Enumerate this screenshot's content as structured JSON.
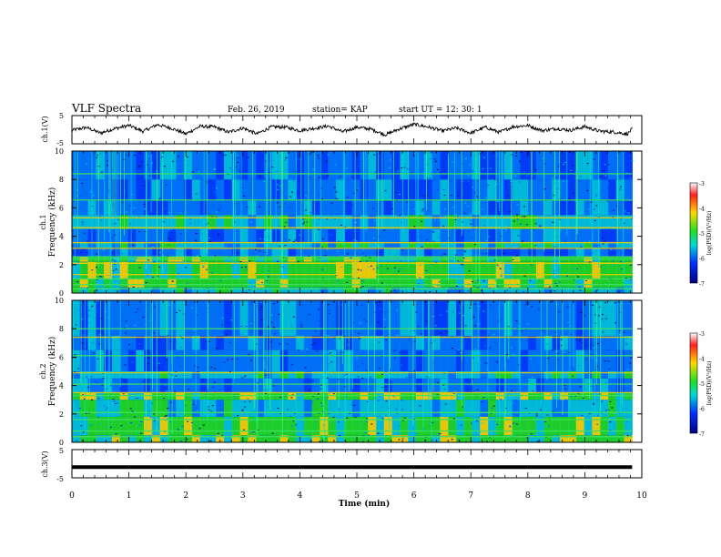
{
  "header": {
    "title": "VLF Spectra",
    "date": "Feb. 26, 2019",
    "station": "station= KAP",
    "start": "start  UT  =   12: 30: 1"
  },
  "colorbar": {
    "label": "log(PSD)(V²/Hz)",
    "ticks": [
      "-3",
      "-4",
      "-5",
      "-6",
      "-7"
    ],
    "colors": [
      "#ffffff",
      "#ff2020",
      "#ffd800",
      "#20e020",
      "#00d8d8",
      "#0030ff",
      "#000080"
    ]
  },
  "chart_data": [
    {
      "type": "line",
      "name": "ch1-waveform",
      "ylabel": "ch.1(V)",
      "ylim": [
        -5,
        5
      ],
      "yticks": [
        "5",
        "-5"
      ],
      "xlim": [
        0,
        10
      ],
      "x_end": 9.83,
      "description_points": [
        [
          0.0,
          -0.2
        ],
        [
          0.25,
          0.8
        ],
        [
          0.5,
          -1.2
        ],
        [
          0.75,
          0.4
        ],
        [
          1.0,
          1.5
        ],
        [
          1.25,
          -0.6
        ],
        [
          1.5,
          1.8
        ],
        [
          1.75,
          0.5
        ],
        [
          2.0,
          -1.5
        ],
        [
          2.25,
          1.2
        ],
        [
          2.5,
          1.0
        ],
        [
          2.75,
          -0.9
        ],
        [
          3.0,
          0.6
        ],
        [
          3.25,
          -1.5
        ],
        [
          3.5,
          1.0
        ],
        [
          3.75,
          0.9
        ],
        [
          4.0,
          -0.3
        ],
        [
          4.25,
          0.5
        ],
        [
          4.5,
          1.3
        ],
        [
          4.75,
          -0.8
        ],
        [
          5.0,
          0.9
        ],
        [
          5.25,
          0.2
        ],
        [
          5.5,
          -1.8
        ],
        [
          5.75,
          0.3
        ],
        [
          6.0,
          1.9
        ],
        [
          6.25,
          1.0
        ],
        [
          6.5,
          -0.4
        ],
        [
          6.75,
          0.6
        ],
        [
          7.0,
          -1.2
        ],
        [
          7.25,
          0.9
        ],
        [
          7.5,
          -0.9
        ],
        [
          7.75,
          1.1
        ],
        [
          8.0,
          1.5
        ],
        [
          8.25,
          -0.3
        ],
        [
          8.5,
          0.4
        ],
        [
          8.75,
          -0.2
        ],
        [
          9.0,
          1.1
        ],
        [
          9.25,
          -0.5
        ],
        [
          9.5,
          -0.8
        ],
        [
          9.75,
          -1.5
        ],
        [
          9.83,
          0.3
        ]
      ]
    },
    {
      "type": "heatmap",
      "name": "ch1-spectrogram",
      "ylabel": "ch.1",
      "ylabel2": "Frequency (kHz)",
      "ylim": [
        0,
        10
      ],
      "yticks": [
        "0",
        "2",
        "4",
        "6",
        "8",
        "10"
      ],
      "xlim": [
        0,
        10
      ],
      "x_end": 9.83,
      "bands": [
        {
          "f0": 0.0,
          "f1": 0.4,
          "level": 4
        },
        {
          "f0": 0.4,
          "f1": 1.0,
          "level": 3
        },
        {
          "f0": 1.0,
          "f1": 2.2,
          "level": 3
        },
        {
          "f0": 2.2,
          "f1": 2.6,
          "level": 3
        },
        {
          "f0": 2.6,
          "f1": 3.2,
          "level": 5
        },
        {
          "f0": 3.2,
          "f1": 3.6,
          "level": 4
        },
        {
          "f0": 3.6,
          "f1": 4.5,
          "level": 5
        },
        {
          "f0": 4.5,
          "f1": 5.5,
          "level": 4
        },
        {
          "f0": 5.5,
          "f1": 6.5,
          "level": 5
        },
        {
          "f0": 6.5,
          "f1": 8.0,
          "level": 5
        },
        {
          "f0": 8.0,
          "f1": 10.0,
          "level": 5
        }
      ],
      "bright_lines_khz": [
        0.3,
        0.6,
        1.0,
        1.3,
        2.1,
        2.4,
        2.55,
        3.15,
        3.55,
        4.6,
        5.3,
        6.55,
        8.4
      ]
    },
    {
      "type": "heatmap",
      "name": "ch2-spectrogram",
      "ylabel": "ch.2",
      "ylabel2": "Frequency (kHz)",
      "ylim": [
        0,
        10
      ],
      "yticks": [
        "0",
        "2",
        "4",
        "6",
        "8",
        "10"
      ],
      "xlim": [
        0,
        10
      ],
      "x_end": 9.83,
      "bands": [
        {
          "f0": 0.0,
          "f1": 0.5,
          "level": 3
        },
        {
          "f0": 0.5,
          "f1": 1.8,
          "level": 3
        },
        {
          "f0": 1.8,
          "f1": 3.0,
          "level": 4
        },
        {
          "f0": 3.0,
          "f1": 3.5,
          "level": 3
        },
        {
          "f0": 3.5,
          "f1": 4.5,
          "level": 5
        },
        {
          "f0": 4.5,
          "f1": 5.0,
          "level": 4
        },
        {
          "f0": 5.0,
          "f1": 6.5,
          "level": 5
        },
        {
          "f0": 6.5,
          "f1": 7.5,
          "level": 5
        },
        {
          "f0": 7.5,
          "f1": 10.0,
          "level": 5
        }
      ],
      "bright_lines_khz": [
        0.4,
        0.8,
        1.6,
        2.1,
        3.3,
        3.5,
        4.1,
        4.9,
        6.1,
        7.4,
        8.0
      ]
    },
    {
      "type": "line",
      "name": "ch3-waveform",
      "ylabel": "ch.3(V)",
      "ylim": [
        -5,
        5
      ],
      "yticks": [
        "5",
        "-5"
      ],
      "xlim": [
        0,
        10
      ],
      "x_end": 9.83,
      "description_points": [
        [
          0.0,
          -1.2
        ],
        [
          9.83,
          -1.2
        ]
      ]
    }
  ],
  "xaxis": {
    "label": "Time  (min)",
    "ticks": [
      "0",
      "1",
      "2",
      "3",
      "4",
      "5",
      "6",
      "7",
      "8",
      "9",
      "10"
    ]
  }
}
